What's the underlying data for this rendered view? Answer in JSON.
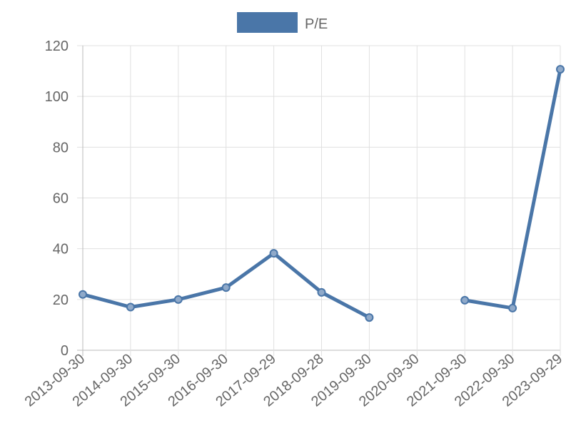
{
  "chart_data": {
    "type": "line",
    "categories": [
      "2013-09-30",
      "2014-09-30",
      "2015-09-30",
      "2016-09-30",
      "2017-09-29",
      "2018-09-28",
      "2019-09-30",
      "2020-09-30",
      "2021-09-30",
      "2022-09-30",
      "2023-09-29"
    ],
    "series": [
      {
        "name": "P/E",
        "color": "#4a76a8",
        "values": [
          22,
          17,
          20,
          24.7,
          38.2,
          22.8,
          12.9,
          null,
          19.7,
          16.6,
          110.7
        ]
      }
    ],
    "ylim": [
      0,
      120
    ],
    "yticks": [
      0,
      20,
      40,
      60,
      80,
      100,
      120
    ],
    "grid": true,
    "legend": "top"
  }
}
